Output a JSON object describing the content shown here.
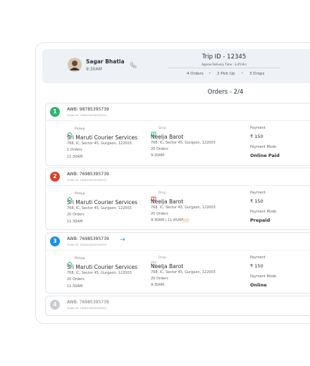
{
  "header": {
    "driver_name": "Sagar Bhatia",
    "driver_time": "9:30AM",
    "trip_id": "Trip ID - 12345",
    "delivery_time": "Approx Delivery Time : 3.45 Hrs",
    "orders_count": "4 Orders",
    "pickups": "2 Pick Up",
    "drops": "3 Drops"
  },
  "orders_title": "Orders - 2/4",
  "orders": [
    {
      "number": "1",
      "color": "#2bb673",
      "awb": "AWB: 98785395739",
      "order_id": "Order ID: 1SI6104050234914",
      "pickup": {
        "label": "Pickup",
        "name": "Sri Maruti Courier Services",
        "address": "768, IC, Sector 45, Gurgaon, 122003",
        "orders": "1 Orders",
        "time": "11:30AM"
      },
      "drop": {
        "label": "Drop",
        "name": "Neelja Barot",
        "address": "768, IC, Sector 45, Gurgaon, 122003",
        "orders": "20 Orders",
        "time": "9:30AM"
      },
      "payment": {
        "label": "Payment",
        "amount": "₹ 150",
        "mode_label": "Payment Mode",
        "mode": "Online Paid"
      }
    },
    {
      "number": "2",
      "color": "#d9412b",
      "awb": "AWB: 76985395739",
      "order_id": "Order ID: 1SI6104050234914",
      "pickup": {
        "label": "Pickup",
        "name": "Sri Maruti Courier Services",
        "address": "768, IC, Sector 45, Gurgaon, 122003",
        "orders": "20 Orders",
        "time": "11:30AM"
      },
      "drop": {
        "label": "Drop",
        "name": "Neelja Barot",
        "address": "768, IC, Sector 45, Gurgaon, 122003",
        "orders": "20 Orders",
        "time": "9:30AM | 11:45AM"
      },
      "payment": {
        "label": "Payment",
        "amount": "₹ 150",
        "mode_label": "Payment Mode",
        "mode": "Prepaid"
      }
    },
    {
      "number": "3",
      "color": "#1a8fe3",
      "awb": "AWB: 76985395739",
      "order_id": "Order ID: 1SI6104050234914",
      "pickup": {
        "label": "Pickup",
        "name": "Sri Maruti Courier Services",
        "address": "768, IC, Sector 45, Gurgaon, 122003",
        "orders": "20 Orders",
        "time": "11:30AM"
      },
      "drop": {
        "label": "Drop",
        "name": "Neelja Barot",
        "address": "768, IC, Sector 45, Gurgaon, 122003",
        "orders": "20 Orders",
        "time": "9:30AM"
      },
      "payment": {
        "label": "Payment",
        "amount": "₹ 150",
        "mode_label": "Payment Mode",
        "mode": "Online"
      }
    },
    {
      "number": "4",
      "color": "#c9ccd1",
      "awb": "AWB: 76985395739",
      "order_id": "Order ID: 1SI6104050234914"
    }
  ]
}
